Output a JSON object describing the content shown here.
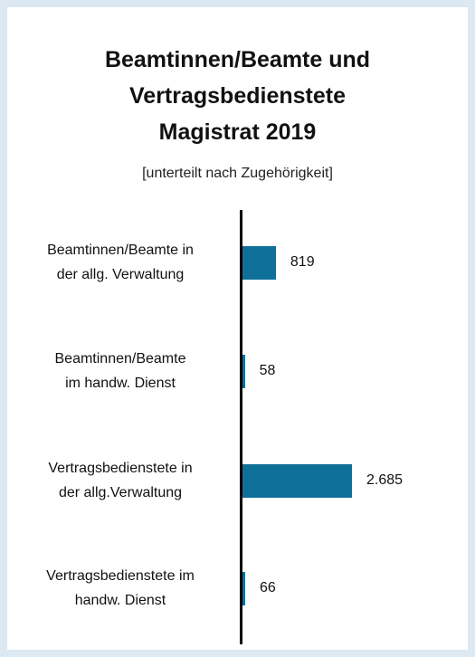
{
  "chart_data": {
    "type": "bar",
    "orientation": "horizontal",
    "title": "Beamtinnen/Beamte und\nVertragsbedienstete\nMagistrat 2019",
    "subtitle": "[unterteilt nach Zugehörigkeit]",
    "categories": [
      "Beamtinnen/Beamte in\nder allg. Verwaltung",
      "Beamtinnen/Beamte\nim handw. Dienst",
      "Vertragsbedienstete in\nder allg.Verwaltung",
      "Vertragsbedienstete im\nhandw. Dienst"
    ],
    "values": [
      819,
      58,
      2685,
      66
    ],
    "value_labels": [
      "819",
      "58",
      "2.685",
      "66"
    ],
    "color": "#0e6f99"
  }
}
